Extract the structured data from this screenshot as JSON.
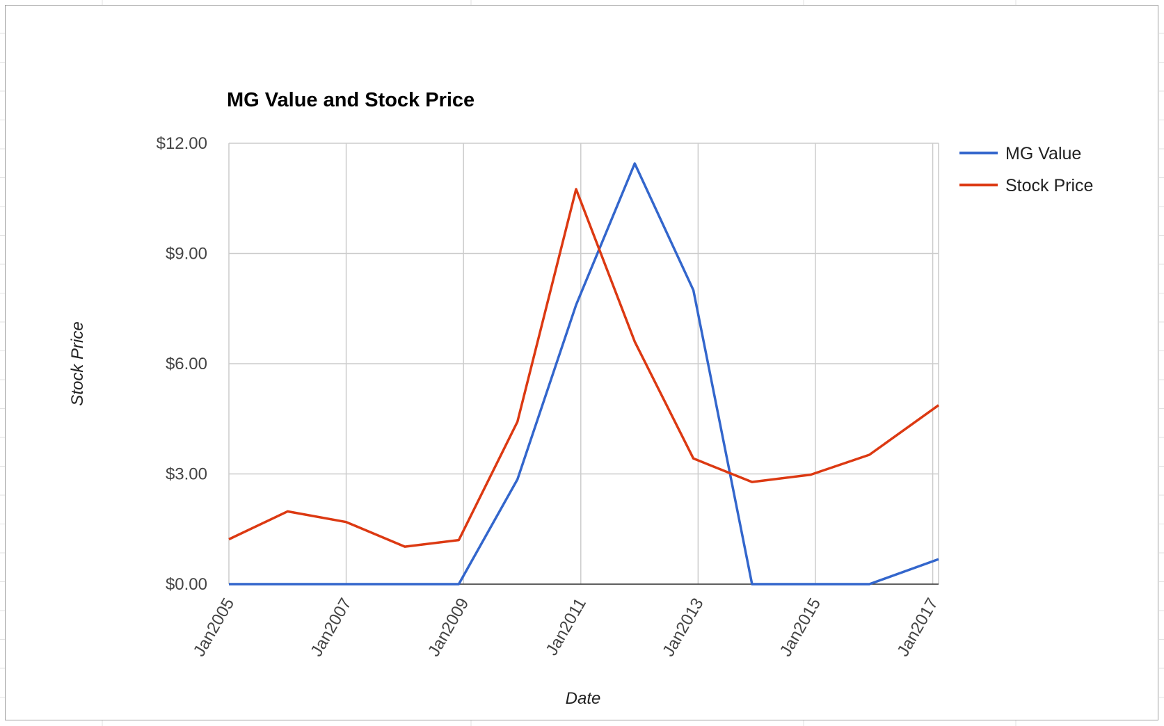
{
  "chart_data": {
    "type": "line",
    "title": "MG Value and Stock Price",
    "xlabel": "Date",
    "ylabel": "Stock Price",
    "x_ticks": [
      "Jan2005",
      "Jan2007",
      "Jan2009",
      "Jan2011",
      "Jan2013",
      "Jan2015",
      "Jan2017"
    ],
    "y_ticks": [
      "$0.00",
      "$3.00",
      "$6.00",
      "$9.00",
      "$12.00"
    ],
    "xlim": [
      2005,
      2017.1
    ],
    "ylim": [
      0,
      12
    ],
    "grid": true,
    "legend_position": "right",
    "series": [
      {
        "name": "MG Value",
        "color": "#3366cc",
        "points": [
          {
            "x": 2005.0,
            "y": 0
          },
          {
            "x": 2006.0,
            "y": 0
          },
          {
            "x": 2007.0,
            "y": 0
          },
          {
            "x": 2008.0,
            "y": 0
          },
          {
            "x": 2008.92,
            "y": 0
          },
          {
            "x": 2009.92,
            "y": 2.85
          },
          {
            "x": 2010.92,
            "y": 7.6
          },
          {
            "x": 2011.92,
            "y": 11.45
          },
          {
            "x": 2012.92,
            "y": 8.0
          },
          {
            "x": 2013.92,
            "y": 0
          },
          {
            "x": 2014.92,
            "y": 0
          },
          {
            "x": 2015.92,
            "y": 0
          },
          {
            "x": 2017.1,
            "y": 0.68
          }
        ]
      },
      {
        "name": "Stock Price",
        "color": "#dc3912",
        "points": [
          {
            "x": 2005.0,
            "y": 1.22
          },
          {
            "x": 2006.0,
            "y": 1.98
          },
          {
            "x": 2007.0,
            "y": 1.69
          },
          {
            "x": 2008.0,
            "y": 1.02
          },
          {
            "x": 2008.92,
            "y": 1.2
          },
          {
            "x": 2009.92,
            "y": 4.42
          },
          {
            "x": 2010.92,
            "y": 10.75
          },
          {
            "x": 2011.92,
            "y": 6.6
          },
          {
            "x": 2012.92,
            "y": 3.42
          },
          {
            "x": 2013.92,
            "y": 2.78
          },
          {
            "x": 2014.92,
            "y": 2.98
          },
          {
            "x": 2015.92,
            "y": 3.52
          },
          {
            "x": 2017.1,
            "y": 4.87
          }
        ]
      }
    ]
  },
  "colors": {
    "gridline": "#cccccc",
    "baseline": "#333333",
    "sheet_gridline": "#e2e2e2"
  }
}
